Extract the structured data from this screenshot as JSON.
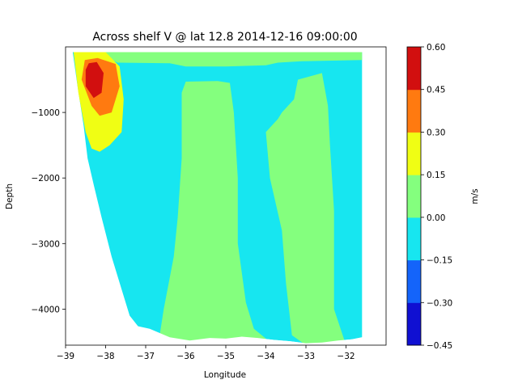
{
  "chart_data": {
    "type": "contourf",
    "title": "Across shelf V @ lat 12.8 2014-12-16 09:00:00",
    "xlabel": "Longitude",
    "ylabel": "Depth",
    "xlim": [
      -39.0,
      -31.0
    ],
    "ylim": [
      -4550,
      0
    ],
    "xticks": [
      -39,
      -38,
      -37,
      -36,
      -35,
      -34,
      -33,
      -32
    ],
    "xtick_labels": [
      "−39",
      "−38",
      "−37",
      "−36",
      "−35",
      "−34",
      "−33",
      "−32"
    ],
    "yticks": [
      -1000,
      -2000,
      -3000,
      -4000
    ],
    "ytick_labels": [
      "−1000",
      "−2000",
      "−3000",
      "−4000"
    ],
    "colorbar": {
      "label": "m/s",
      "levels": [
        -0.45,
        -0.3,
        -0.15,
        0.0,
        0.15,
        0.3,
        0.45,
        0.6
      ],
      "level_labels": [
        "−0.45",
        "−0.30",
        "−0.15",
        "0.00",
        "0.15",
        "0.30",
        "0.45",
        "0.60"
      ],
      "colors": [
        "#1010d2",
        "#1464fa",
        "#17e6f0",
        "#84ff7e",
        "#f0fe14",
        "#ff7a10",
        "#d20f0f"
      ]
    },
    "regions": {
      "band_0_to_0.15": [
        [
          [
            -38.0,
            -80
          ],
          [
            -31.6,
            -80
          ],
          [
            -31.6,
            -200
          ],
          [
            -33.1,
            -220
          ],
          [
            -33.7,
            -240
          ],
          [
            -34.0,
            -280
          ],
          [
            -35.0,
            -300
          ],
          [
            -36.0,
            -300
          ],
          [
            -36.4,
            -250
          ],
          [
            -37.7,
            -240
          ],
          [
            -38.0,
            -150
          ]
        ],
        [
          [
            -36.65,
            -4400
          ],
          [
            -36.55,
            -4000
          ],
          [
            -36.3,
            -3200
          ],
          [
            -36.2,
            -2600
          ],
          [
            -36.1,
            -1700
          ],
          [
            -36.1,
            -700
          ],
          [
            -36.0,
            -530
          ],
          [
            -35.2,
            -520
          ],
          [
            -34.9,
            -550
          ],
          [
            -34.8,
            -1000
          ],
          [
            -34.7,
            -2000
          ],
          [
            -34.7,
            -3000
          ],
          [
            -34.5,
            -3900
          ],
          [
            -34.3,
            -4300
          ],
          [
            -34.0,
            -4450
          ],
          [
            -34.3,
            -4540
          ],
          [
            -36.6,
            -4540
          ]
        ],
        [
          [
            -34.0,
            -1300
          ],
          [
            -33.7,
            -1100
          ],
          [
            -33.6,
            -1000
          ],
          [
            -33.3,
            -800
          ],
          [
            -33.2,
            -500
          ],
          [
            -32.6,
            -400
          ],
          [
            -32.45,
            -900
          ],
          [
            -32.4,
            -1500
          ],
          [
            -32.3,
            -2500
          ],
          [
            -32.3,
            -4000
          ],
          [
            -32.0,
            -4550
          ],
          [
            -33.0,
            -4550
          ],
          [
            -33.35,
            -4400
          ],
          [
            -33.5,
            -3600
          ],
          [
            -33.6,
            -2800
          ],
          [
            -33.9,
            -2000
          ]
        ]
      ],
      "band_0.30_to_0.45": [
        [
          [
            -38.52,
            -200
          ],
          [
            -38.2,
            -170
          ],
          [
            -37.75,
            -260
          ],
          [
            -37.65,
            -600
          ],
          [
            -37.85,
            -1000
          ],
          [
            -38.15,
            -1050
          ],
          [
            -38.35,
            -900
          ],
          [
            -38.6,
            -500
          ]
        ]
      ],
      "band_0.45_to_0.60": [
        [
          [
            -38.42,
            -250
          ],
          [
            -38.22,
            -230
          ],
          [
            -38.05,
            -400
          ],
          [
            -38.1,
            -700
          ],
          [
            -38.3,
            -780
          ],
          [
            -38.5,
            -600
          ],
          [
            -38.5,
            -350
          ]
        ]
      ]
    }
  }
}
